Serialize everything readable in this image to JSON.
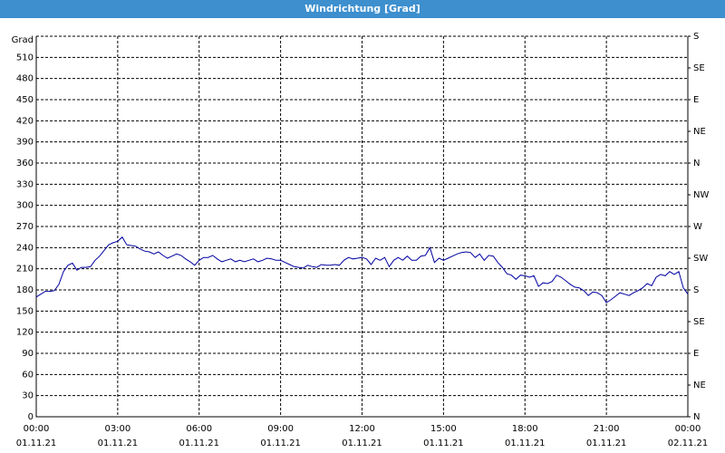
{
  "chart_data": {
    "type": "line",
    "title": "Windrichtung [Grad]",
    "y_label": "Grad",
    "x": [
      0,
      10,
      20,
      30,
      40,
      50,
      60,
      70,
      80,
      90,
      100,
      110,
      120,
      130,
      140,
      150,
      160,
      170,
      180,
      190,
      200,
      210,
      220,
      230,
      240,
      250,
      260,
      270,
      280,
      290,
      300,
      310,
      320,
      330,
      340,
      350,
      360,
      370,
      380,
      390,
      400,
      410,
      420,
      430,
      440,
      450,
      460,
      470,
      480,
      490,
      500,
      510,
      520,
      530,
      540,
      550,
      560,
      570,
      580,
      590,
      600,
      610,
      620,
      630,
      640,
      650,
      660,
      670,
      680,
      690,
      700,
      710,
      720,
      730,
      740,
      750,
      760,
      770,
      780,
      790,
      800,
      810,
      820,
      830,
      840,
      850,
      860,
      870,
      880,
      890,
      900,
      910,
      920,
      930,
      940,
      950,
      960,
      970,
      980,
      990,
      1000,
      1010,
      1020,
      1030,
      1040,
      1050,
      1060,
      1070,
      1080,
      1090,
      1100,
      1110,
      1120,
      1130,
      1140,
      1150,
      1160,
      1170,
      1180,
      1190,
      1200,
      1210,
      1220,
      1230,
      1240,
      1250,
      1260,
      1270,
      1280,
      1290,
      1300,
      1310,
      1320,
      1330,
      1340,
      1350,
      1360,
      1370,
      1380,
      1390,
      1400,
      1410,
      1420,
      1430,
      1440
    ],
    "series": [
      {
        "name": "Windrichtung",
        "color": "#0000a0",
        "values": [
          170,
          174,
          178,
          178,
          179,
          188,
          206,
          215,
          218,
          208,
          212,
          212,
          213,
          222,
          228,
          236,
          244,
          247,
          249,
          255,
          244,
          243,
          242,
          238,
          235,
          234,
          231,
          234,
          229,
          225,
          228,
          231,
          229,
          224,
          220,
          215,
          222,
          226,
          226,
          229,
          224,
          220,
          222,
          224,
          220,
          222,
          220,
          222,
          224,
          220,
          222,
          225,
          224,
          222,
          222,
          219,
          216,
          213,
          212,
          211,
          215,
          213,
          212,
          216,
          215,
          215,
          216,
          215,
          222,
          226,
          224,
          225,
          226,
          224,
          216,
          225,
          222,
          226,
          213,
          222,
          226,
          222,
          228,
          222,
          222,
          228,
          229,
          240,
          219,
          225,
          222,
          225,
          228,
          231,
          233,
          234,
          233,
          226,
          231,
          222,
          229,
          228,
          219,
          212,
          203,
          201,
          195,
          201,
          200,
          198,
          200,
          185,
          190,
          189,
          192,
          201,
          198,
          193,
          188,
          184,
          183,
          179,
          172,
          177,
          176,
          172,
          162,
          166,
          171,
          176,
          174,
          172,
          176,
          179,
          183,
          189,
          186,
          198,
          202,
          200,
          206,
          202,
          206,
          183,
          174
        ]
      }
    ],
    "xlim": [
      0,
      1440
    ],
    "xticks": [
      {
        "value": 0,
        "label": "00:00"
      },
      {
        "value": 180,
        "label": "03:00"
      },
      {
        "value": 360,
        "label": "06:00"
      },
      {
        "value": 540,
        "label": "09:00"
      },
      {
        "value": 720,
        "label": "12:00"
      },
      {
        "value": 900,
        "label": "15:00"
      },
      {
        "value": 1080,
        "label": "18:00"
      },
      {
        "value": 1260,
        "label": "21:00"
      },
      {
        "value": 1440,
        "label": "00:00"
      }
    ],
    "xtick_dates": [
      "01.11.21",
      "01.11.21",
      "01.11.21",
      "01.11.21",
      "01.11.21",
      "01.11.21",
      "01.11.21",
      "01.11.21",
      "02.11.21"
    ],
    "ylim": [
      0,
      540
    ],
    "yticks": [
      0,
      30,
      60,
      90,
      120,
      150,
      180,
      210,
      240,
      270,
      300,
      330,
      360,
      390,
      420,
      450,
      480,
      510
    ],
    "y2lim": [
      0,
      540
    ],
    "y2ticks": [
      {
        "value": 0,
        "label": "N"
      },
      {
        "value": 45,
        "label": "NE"
      },
      {
        "value": 90,
        "label": "E"
      },
      {
        "value": 135,
        "label": "SE"
      },
      {
        "value": 180,
        "label": "S"
      },
      {
        "value": 225,
        "label": "SW"
      },
      {
        "value": 270,
        "label": "W"
      },
      {
        "value": 315,
        "label": "NW"
      },
      {
        "value": 360,
        "label": "N"
      },
      {
        "value": 405,
        "label": "NE"
      },
      {
        "value": 450,
        "label": "E"
      },
      {
        "value": 495,
        "label": "SE"
      },
      {
        "value": 540,
        "label": "S"
      }
    ],
    "grid": true
  }
}
